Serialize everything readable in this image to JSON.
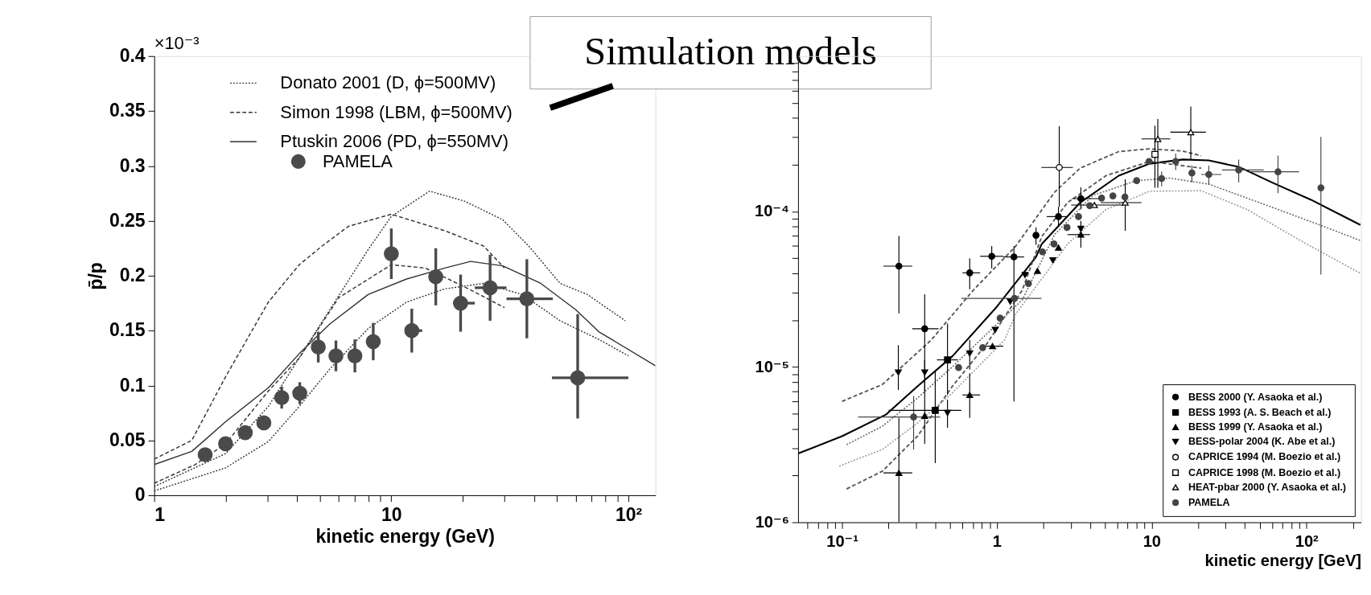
{
  "chart_data": [
    {
      "type": "scatter",
      "xlabel": "kinetic energy (GeV)",
      "ylabel": "p̄/p",
      "log": "x",
      "grid": false,
      "legend": "top left",
      "xlim": [
        1,
        130
      ],
      "ylim": [
        0,
        0.4
      ],
      "xticks": [
        1,
        {
          "value": 2,
          "label": null
        },
        {
          "value": 3,
          "label": null
        },
        {
          "value": 4,
          "label": null
        },
        {
          "value": 5,
          "label": null
        },
        {
          "value": 6,
          "label": null
        },
        {
          "value": 7,
          "label": null
        },
        {
          "value": 8,
          "label": null
        },
        {
          "value": 9,
          "label": null
        },
        10,
        {
          "value": 20,
          "label": null
        },
        {
          "value": 30,
          "label": null
        },
        {
          "value": 40,
          "label": null
        },
        {
          "value": 50,
          "label": null
        },
        {
          "value": 60,
          "label": null
        },
        {
          "value": 70,
          "label": null
        },
        {
          "value": 80,
          "label": null
        },
        {
          "value": 90,
          "label": null
        },
        {
          "value": 100,
          "label": "10²"
        }
      ],
      "yticks": [
        0,
        0.05,
        0.1,
        0.15,
        0.2,
        0.25,
        0.3,
        0.35,
        0.4
      ],
      "annotations": [
        "×10⁻³",
        "Simulation models"
      ],
      "series": [
        {
          "name": "Donato 2001 (D, ϕ=500MV)",
          "type": "line",
          "line_style": "dotted",
          "color": "#333333",
          "x": [
            1,
            2,
            3.03,
            5.5,
            8,
            10,
            14.5,
            20.3,
            29.5,
            38,
            51.5,
            67,
            97
          ],
          "values": [
            0.008,
            0.038,
            0.081,
            0.169,
            0.224,
            0.254,
            0.277,
            0.268,
            0.251,
            0.227,
            0.193,
            0.183,
            0.159
          ]
        },
        {
          "type": "line",
          "line_style": "dotted",
          "color": "#333333",
          "x": [
            1,
            2,
            3.03,
            4.09,
            5.5,
            8,
            11.6,
            16.8,
            24.5,
            35.6,
            51.5,
            75,
            100
          ],
          "values": [
            0.004,
            0.025,
            0.049,
            0.081,
            0.115,
            0.152,
            0.176,
            0.188,
            0.193,
            0.183,
            0.159,
            0.142,
            0.127
          ]
        },
        {
          "name": "Simon 1998 (LBM, ϕ=500MV)",
          "type": "line",
          "line_style": "dashed",
          "color": "#333333",
          "x": [
            1,
            1.44,
            2,
            3.03,
            4.09,
            5.1,
            6.6,
            10,
            16.8,
            24.5,
            30
          ],
          "values": [
            0.033,
            0.05,
            0.108,
            0.176,
            0.21,
            0.227,
            0.245,
            0.256,
            0.241,
            0.227,
            0.207
          ]
        },
        {
          "type": "line",
          "line_style": "dashed",
          "color": "#333333",
          "x": [
            1,
            1.49,
            2,
            3.03,
            4.09,
            6,
            10,
            13.9,
            20.3,
            30
          ],
          "values": [
            0.011,
            0.028,
            0.047,
            0.095,
            0.125,
            0.18,
            0.21,
            0.207,
            0.19,
            0.171
          ]
        },
        {
          "name": "Ptuskin 2006 (PD, ϕ=550MV)",
          "type": "line",
          "line_style": "solid",
          "color": "#333333",
          "x": [
            1,
            1.44,
            2,
            3.03,
            4.09,
            5.5,
            8,
            11.6,
            16.8,
            21.6,
            29.5,
            42.7,
            60,
            75,
            130
          ],
          "values": [
            0.028,
            0.04,
            0.067,
            0.098,
            0.129,
            0.156,
            0.183,
            0.197,
            0.207,
            0.213,
            0.209,
            0.193,
            0.169,
            0.149,
            0.118
          ]
        },
        {
          "name": "PAMELA",
          "type": "scatter",
          "marker": "circle",
          "color": "#4a4a4a",
          "x": [
            1.64,
            2.0,
            2.42,
            2.9,
            3.45,
            4.11,
            4.92,
            5.84,
            7.02,
            8.39,
            10,
            12.2,
            15.4,
            19.6,
            26.1,
            37.3,
            61.1
          ],
          "values": [
            0.037,
            0.047,
            0.057,
            0.066,
            0.089,
            0.093,
            0.135,
            0.127,
            0.127,
            0.14,
            0.22,
            0.15,
            0.199,
            0.175,
            0.189,
            0.179,
            0.107
          ],
          "errors": [
            null,
            null,
            null,
            null,
            0.01,
            0.01,
            0.014,
            0.014,
            0.015,
            0.017,
            0.023,
            0.02,
            0.026,
            0.026,
            0.03,
            0.036,
            [
              0.07,
              0.165
            ]
          ],
          "xerrors": [
            null,
            null,
            null,
            null,
            null,
            null,
            null,
            null,
            null,
            null,
            null,
            [
              11.4,
              13.5
            ],
            null,
            [
              18.2,
              22.5
            ],
            [
              22.5,
              30.6
            ],
            [
              30.6,
              48
            ],
            [
              47.6,
              100
            ]
          ]
        }
      ]
    },
    {
      "type": "scatter",
      "xlabel": "kinetic energy [GeV]",
      "log": "xy",
      "grid": false,
      "legend": "bottom right",
      "xlim": [
        0.052,
        225
      ],
      "ylim": [
        1e-06,
        0.001
      ],
      "xticks": [
        {
          "value": 0.06,
          "label": null
        },
        {
          "value": 0.07,
          "label": null
        },
        {
          "value": 0.08,
          "label": null
        },
        {
          "value": 0.09,
          "label": null
        },
        {
          "value": 0.1,
          "label": "10⁻¹"
        },
        {
          "value": 0.2,
          "label": null
        },
        {
          "value": 0.3,
          "label": null
        },
        {
          "value": 0.4,
          "label": null
        },
        {
          "value": 0.5,
          "label": null
        },
        {
          "value": 0.6,
          "label": null
        },
        {
          "value": 0.7,
          "label": null
        },
        {
          "value": 0.8,
          "label": null
        },
        {
          "value": 0.9,
          "label": null
        },
        1,
        {
          "value": 2,
          "label": null
        },
        {
          "value": 3,
          "label": null
        },
        {
          "value": 4,
          "label": null
        },
        {
          "value": 5,
          "label": null
        },
        {
          "value": 6,
          "label": null
        },
        {
          "value": 7,
          "label": null
        },
        {
          "value": 8,
          "label": null
        },
        {
          "value": 9,
          "label": null
        },
        10,
        {
          "value": 20,
          "label": null
        },
        {
          "value": 30,
          "label": null
        },
        {
          "value": 40,
          "label": null
        },
        {
          "value": 50,
          "label": null
        },
        {
          "value": 60,
          "label": null
        },
        {
          "value": 70,
          "label": null
        },
        {
          "value": 80,
          "label": null
        },
        {
          "value": 90,
          "label": null
        },
        {
          "value": 100,
          "label": "10²"
        },
        {
          "value": 200,
          "label": null
        }
      ],
      "yticks": [
        {
          "value": 1e-06,
          "label": "10⁻⁶"
        },
        {
          "value": 2e-06,
          "label": null
        },
        {
          "value": 3e-06,
          "label": null
        },
        {
          "value": 4e-06,
          "label": null
        },
        {
          "value": 5e-06,
          "label": null
        },
        {
          "value": 6e-06,
          "label": null
        },
        {
          "value": 7e-06,
          "label": null
        },
        {
          "value": 8e-06,
          "label": null
        },
        {
          "value": 9e-06,
          "label": null
        },
        {
          "value": 1e-05,
          "label": "10⁻⁵"
        },
        {
          "value": 2e-05,
          "label": null
        },
        {
          "value": 3e-05,
          "label": null
        },
        {
          "value": 4e-05,
          "label": null
        },
        {
          "value": 5e-05,
          "label": null
        },
        {
          "value": 6e-05,
          "label": null
        },
        {
          "value": 7e-05,
          "label": null
        },
        {
          "value": 8e-05,
          "label": null
        },
        {
          "value": 9e-05,
          "label": null
        },
        {
          "value": 0.0001,
          "label": "10⁻⁴"
        },
        {
          "value": 0.0002,
          "label": null
        },
        {
          "value": 0.0003,
          "label": null
        },
        {
          "value": 0.0004,
          "label": null
        },
        {
          "value": 0.0005,
          "label": null
        },
        {
          "value": 0.0006,
          "label": null
        },
        {
          "value": 0.0007,
          "label": null
        },
        {
          "value": 0.0008,
          "label": null
        },
        {
          "value": 0.0009,
          "label": null
        }
      ],
      "series": [
        {
          "type": "line",
          "line_style": "solid",
          "color": "#000000",
          "x": [
            0.052,
            0.1,
            0.192,
            0.307,
            0.516,
            1.0,
            1.79,
            1.95,
            3.45,
            6.13,
            9.7,
            15.9,
            23.4,
            36.9,
            60.6,
            107,
            223
          ],
          "values": [
            2.77e-06,
            3.58e-06,
            4.93e-06,
            7.5e-06,
            1.17e-05,
            2.44e-05,
            5.1e-05,
            6.18e-05,
            0.000114,
            0.00017,
            0.000203,
            0.000216,
            0.000213,
            0.000193,
            0.000153,
            0.000119,
            8.2e-05
          ]
        },
        {
          "type": "line",
          "line_style": "dashed",
          "color": "#555555",
          "x": [
            0.1,
            0.182,
            0.377,
            0.705,
            1.31,
            2.36,
            3.45,
            6.13,
            9.7,
            15.9,
            20.9
          ],
          "values": [
            6e-06,
            7.7e-06,
            1.49e-05,
            3.12e-05,
            5.9e-05,
            0.000133,
            0.00019,
            0.000243,
            0.000253,
            0.000245,
            0.000228
          ]
        },
        {
          "type": "line",
          "line_style": "dashed",
          "color": "#555555",
          "x": [
            0.107,
            0.182,
            0.307,
            0.516,
            0.866,
            1.46,
            1.95,
            2.86,
            5.07,
            9.7,
            15.9,
            20.9
          ],
          "values": [
            1.64e-06,
            2.13e-06,
            3.58e-06,
            7.5e-06,
            1.42e-05,
            3.12e-05,
            6.9e-05,
            0.000114,
            0.00017,
            0.00021,
            0.000197,
            0.00019
          ]
        },
        {
          "type": "line",
          "line_style": "dotted",
          "color": "#666666",
          "x": [
            0.107,
            0.182,
            0.307,
            0.516,
            1.46,
            2.36,
            4.18,
            8.0,
            13.2,
            23.4,
            60.6,
            130,
            223
          ],
          "values": [
            3.16e-06,
            4.15e-06,
            6.3e-06,
            1e-05,
            2.7e-05,
            7.1e-05,
            0.000127,
            0.000158,
            0.000164,
            0.00015,
            0.000106,
            8e-05,
            6.5e-05
          ]
        },
        {
          "type": "line",
          "line_style": "dotted",
          "color": "#999999",
          "x": [
            0.096,
            0.182,
            0.307,
            0.516,
            1.12,
            1.33,
            2.86,
            5.07,
            9.7,
            20.9,
            41.4,
            89,
            223
          ],
          "values": [
            2.3e-06,
            2.94e-06,
            4.35e-06,
            6.8e-06,
            1.49e-05,
            2.2e-05,
            6.18e-05,
            0.000103,
            0.000135,
            0.000136,
            0.000103,
            6.6e-05,
            4e-05
          ]
        },
        {
          "name": "BESS 2000 (Y. Asaoka et al.)",
          "type": "scatter",
          "marker": "circle",
          "color": "#000000",
          "x": [
            0.233,
            0.342,
            0.668,
            0.927,
            1.29,
            1.79,
            2.5,
            3.49
          ],
          "values": [
            4.45e-05,
            1.76e-05,
            4.03e-05,
            5.15e-05,
            5.1e-05,
            7.03e-05,
            9.27e-05,
            0.000121
          ],
          "errors": [
            [
              2.21e-05,
              6.95e-05
            ],
            [
              8.7e-06,
              2.93e-05
            ],
            [
              3.16e-05,
              5e-05
            ],
            [
              4.3e-05,
              6e-05
            ],
            [
              6e-06,
              6e-05
            ],
            [
              6.1e-05,
              7.9e-05
            ],
            [
              8.1e-05,
              0.000107
            ],
            [
              0.000103,
              0.000143
            ]
          ],
          "xerrors": [
            [
              0.185,
              0.284
            ],
            [
              0.284,
              0.42
            ],
            [
              0.6,
              0.78
            ],
            [
              0.78,
              1.1
            ],
            [
              1.1,
              1.5
            ],
            null,
            [
              2.1,
              2.86
            ],
            [
              3.06,
              4.78
            ]
          ]
        },
        {
          "name": "BESS 1993 (A. S. Beach et al.)",
          "type": "scatter",
          "marker": "square",
          "color": "#000000",
          "x": [
            0.48,
            0.4
          ],
          "values": [
            1.11e-05,
            5.25e-06
          ],
          "errors": [
            [
              6.6e-06,
              1.9e-05
            ],
            [
              2.4e-06,
              9.5e-06
            ]
          ],
          "xerrors": [
            [
              0.41,
              0.56
            ],
            [
              0.2,
              0.59
            ]
          ]
        },
        {
          "name": "BESS 1999 (Y. Asaoka et al.)",
          "type": "scatter",
          "marker": "triangle",
          "color": "#000000",
          "x": [
            0.233,
            0.342,
            0.668,
            0.937,
            1.83,
            2.5,
            3.49
          ],
          "values": [
            2.08e-06,
            4.85e-06,
            6.6e-06,
            1.36e-05,
            4.15e-05,
            5.85e-05,
            7.1e-05
          ],
          "errors": [
            [
              1e-06,
              4.7e-06
            ],
            [
              3.2e-06,
              9.5e-06
            ],
            [
              4.7e-06,
              9.1e-06
            ],
            null,
            null,
            null,
            [
              5.85e-05,
              8.7e-05
            ]
          ],
          "xerrors": [
            [
              0.185,
              0.284
            ],
            null,
            [
              0.6,
              0.78
            ],
            [
              0.78,
              1.1
            ],
            null,
            null,
            [
              2.86,
              4.0
            ]
          ]
        },
        {
          "name": "BESS-polar 2004 (K. Abe et al.)",
          "type": "scatter",
          "marker": "triangle-down",
          "color": "#000000",
          "x": [
            0.231,
            0.342,
            0.48,
            0.668,
            0.976,
            1.22,
            1.52,
            2.3,
            3.49
          ],
          "values": [
            9.2e-06,
            9.2e-06,
            5.05e-06,
            1.22e-05,
            1.73e-05,
            2.63e-05,
            3.9e-05,
            4.85e-05,
            7.73e-05
          ],
          "errors": [
            [
              7.1e-06,
              1.38e-05
            ],
            [
              7e-06,
              1.11e-05
            ],
            [
              4.06e-06,
              6.15e-06
            ],
            [
              9.6e-06,
              1.49e-05
            ],
            null,
            null,
            null,
            null,
            null
          ]
        },
        {
          "name": "CAPRICE 1994 (M. Boezio et al.)",
          "type": "scatter",
          "marker": "circle",
          "color": "#ffffff",
          "x": [
            2.53
          ],
          "values": [
            0.000192
          ],
          "errors": [
            [
              0.000107,
              0.000354
            ]
          ],
          "xerrors": [
            [
              1.94,
              3.1
            ]
          ]
        },
        {
          "name": "CAPRICE 1998 (M. Boezio et al.)",
          "type": "scatter",
          "marker": "square",
          "color": "#ffffff",
          "x": [
            10.5
          ],
          "values": [
            0.000233
          ],
          "errors": [
            [
              0.000142,
              0.000357
            ]
          ]
        },
        {
          "name": "HEAT-pbar 2000 (Y. Asaoka et al.)",
          "type": "scatter",
          "marker": "triangle",
          "color": "#ffffff",
          "x": [
            4.27,
            6.75,
            10.96,
            17.9
          ],
          "values": [
            0.00011,
            0.000114,
            0.000293,
            0.000324
          ],
          "errors": [
            null,
            [
              7.5e-05,
              0.000161
            ],
            [
              0.000142,
              0.000394
            ],
            [
              0.000216,
              0.000473
            ]
          ],
          "xerrors": [
            [
              3.02,
              6.6
            ],
            [
              4.7,
              8.6
            ],
            [
              8.6,
              13.2
            ],
            [
              13.2,
              22.4
            ]
          ]
        },
        {
          "name": "PAMELA",
          "type": "scatter",
          "marker": "circle",
          "color": "#444444",
          "x": [
            0.29,
            0.566,
            0.81,
            1.05,
            1.3,
            1.6,
            1.97,
            2.34,
            2.84,
            3.37,
            3.98,
            4.75,
            5.62,
            6.72,
            8.0,
            9.62,
            11.6,
            14.3,
            18.2,
            23.4,
            36.5,
            65.5,
            124
          ],
          "values": [
            4.76e-06,
            9.9e-06,
            1.33e-05,
            2.06e-05,
            2.76e-05,
            3.44e-05,
            5.5e-05,
            6.18e-05,
            7.9e-05,
            9.27e-05,
            0.000109,
            0.000122,
            0.000126,
            0.000124,
            0.000158,
            0.00021,
            0.000163,
            0.00021,
            0.000177,
            0.000173,
            0.000185,
            0.00018,
            0.000142
          ],
          "errors": [
            [
              2.93e-06,
              6.5e-06
            ],
            null,
            null,
            null,
            null,
            null,
            null,
            null,
            null,
            null,
            null,
            null,
            null,
            null,
            null,
            null,
            [
              0.000145,
              0.000181
            ],
            [
              0.000185,
              0.000236
            ],
            [
              0.000154,
              0.000197
            ],
            [
              0.000148,
              0.000197
            ],
            [
              0.000154,
              0.000216
            ],
            [
              0.000131,
              0.000229
            ],
            [
              3.93e-05,
              0.000302
            ]
          ],
          "xerrors": [
            [
              0.127,
              0.43
            ],
            null,
            null,
            null,
            [
              0.59,
              1.94
            ],
            null,
            null,
            null,
            null,
            null,
            null,
            null,
            null,
            null,
            null,
            null,
            null,
            null,
            null,
            [
              20.9,
              28.2
            ],
            [
              28.5,
              53
            ],
            [
              43,
              89.5
            ],
            null
          ]
        }
      ]
    }
  ]
}
